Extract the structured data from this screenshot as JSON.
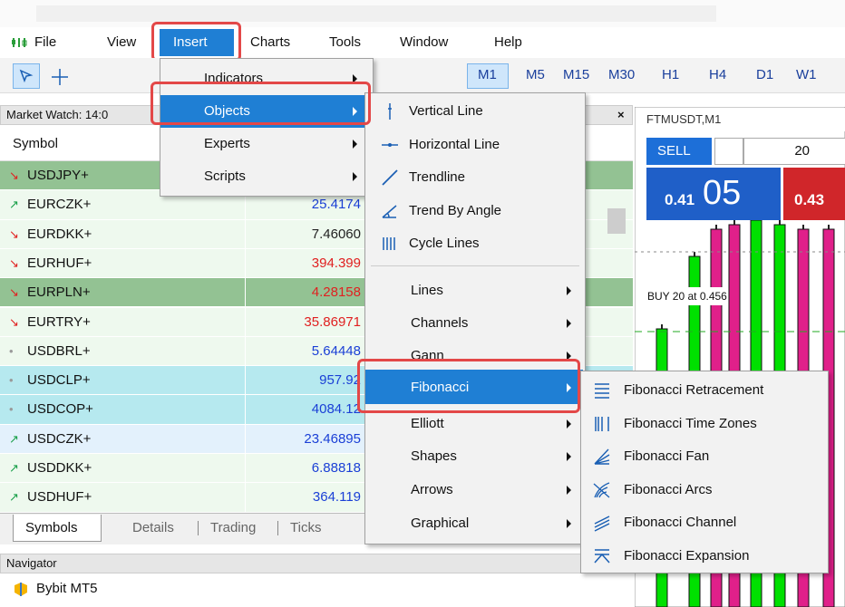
{
  "menu_bar": {
    "items": [
      "File",
      "View",
      "Insert",
      "Charts",
      "Tools",
      "Window",
      "Help"
    ]
  },
  "toolbar": {
    "timeframes": [
      "M1",
      "M5",
      "M15",
      "M30",
      "H1",
      "H4",
      "D1",
      "W1"
    ]
  },
  "market_watch": {
    "title": "Market Watch: 14:0",
    "column_symbol": "Symbol",
    "rows": [
      {
        "symbol": "USDJPY+",
        "trend": "down",
        "row_color": "#93c293"
      },
      {
        "symbol": "EURCZK+",
        "bid": "25.4174",
        "trend": "up",
        "bid_color": "#1a3fd6",
        "row_color": "#eef9ee"
      },
      {
        "symbol": "EURDKK+",
        "bid": "7.46060",
        "trend": "down",
        "bid_color": "#222222",
        "row_color": "#eef9ee"
      },
      {
        "symbol": "EURHUF+",
        "bid": "394.399",
        "trend": "down",
        "bid_color": "#e02020",
        "row_color": "#eef9ee"
      },
      {
        "symbol": "EURPLN+",
        "bid": "4.28158",
        "trend": "down",
        "bid_color": "#e02020",
        "row_color": "#93c293"
      },
      {
        "symbol": "EURTRY+",
        "bid": "35.86971",
        "trend": "down",
        "bid_color": "#e02020",
        "row_color": "#eef9ee"
      },
      {
        "symbol": "USDBRL+",
        "bid": "5.64448",
        "trend": "flat",
        "bid_color": "#1a3fd6",
        "row_color": "#eef9ee"
      },
      {
        "symbol": "USDCLP+",
        "bid": "957.92",
        "trend": "flat",
        "bid_color": "#1a3fd6",
        "row_color": "#b6e9ef"
      },
      {
        "symbol": "USDCOP+",
        "bid": "4084.12",
        "trend": "flat",
        "bid_color": "#1a3fd6",
        "row_color": "#b6e9ef"
      },
      {
        "symbol": "USDCZK+",
        "bid": "23.46895",
        "trend": "up",
        "bid_color": "#1a3fd6",
        "row_color": "#e3f1fc"
      },
      {
        "symbol": "USDDKK+",
        "bid": "6.88818",
        "trend": "up",
        "bid_color": "#1a3fd6",
        "row_color": "#eef9ee"
      },
      {
        "symbol": "USDHUF+",
        "bid": "364.119",
        "trend": "up",
        "bid_color": "#1a3fd6",
        "row_color": "#eef9ee"
      }
    ],
    "tabs": [
      "Symbols",
      "Details",
      "Trading",
      "Ticks"
    ]
  },
  "navigator": {
    "title": "Navigator",
    "items": [
      "Bybit MT5"
    ]
  },
  "insert_menu": {
    "items": [
      "Indicators",
      "Objects",
      "Experts",
      "Scripts"
    ]
  },
  "objects_submenu": {
    "items": [
      "Vertical Line",
      "Horizontal Line",
      "Trendline",
      "Trend By Angle",
      "Cycle Lines",
      "Lines",
      "Channels",
      "Gann",
      "Fibonacci",
      "Elliott",
      "Shapes",
      "Arrows",
      "Graphical"
    ]
  },
  "fibonacci_submenu": {
    "items": [
      "Fibonacci Retracement",
      "Fibonacci Time Zones",
      "Fibonacci Fan",
      "Fibonacci Arcs",
      "Fibonacci Channel",
      "Fibonacci Expansion"
    ]
  },
  "chart": {
    "title": "FTMUSDT,M1",
    "sell": "SELL",
    "volume": "20",
    "bid_small": "0.41",
    "bid_big": "05",
    "ask": "0.43",
    "buy_label": "BUY 20 at 0.456"
  }
}
